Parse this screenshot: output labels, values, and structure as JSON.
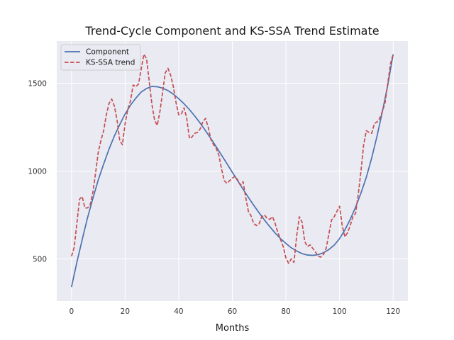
{
  "chart_data": {
    "type": "line",
    "title": "Trend-Cycle Component and KS-SSA Trend Estimate",
    "xlabel": "Months",
    "ylabel": "",
    "xlim": [
      -5.5,
      125.5
    ],
    "ylim": [
      260,
      1740
    ],
    "xticks": [
      0,
      20,
      40,
      60,
      80,
      100,
      120
    ],
    "yticks": [
      500,
      1000,
      1500
    ],
    "grid": true,
    "legend": "top-left",
    "series": [
      {
        "name": "Component",
        "color": "#4c72b0",
        "style": "solid",
        "x": [
          0,
          2,
          4,
          6,
          8,
          10,
          12,
          14,
          16,
          18,
          20,
          22,
          24,
          26,
          28,
          30,
          32,
          34,
          36,
          38,
          40,
          42,
          44,
          46,
          48,
          50,
          52,
          54,
          56,
          58,
          60,
          62,
          64,
          66,
          68,
          70,
          72,
          74,
          76,
          78,
          80,
          82,
          84,
          86,
          88,
          90,
          92,
          94,
          96,
          98,
          100,
          102,
          104,
          106,
          108,
          110,
          112,
          114,
          116,
          118,
          120
        ],
        "y": [
          340,
          480,
          610,
          735,
          845,
          950,
          1040,
          1125,
          1200,
          1265,
          1325,
          1375,
          1415,
          1450,
          1470,
          1482,
          1480,
          1472,
          1458,
          1438,
          1412,
          1383,
          1350,
          1313,
          1273,
          1230,
          1185,
          1138,
          1090,
          1042,
          993,
          945,
          897,
          850,
          805,
          762,
          721,
          683,
          647,
          615,
          588,
          563,
          545,
          530,
          522,
          520,
          524,
          535,
          553,
          578,
          615,
          665,
          725,
          795,
          875,
          965,
          1075,
          1200,
          1340,
          1490,
          1665
        ]
      },
      {
        "name": "KS-SSA trend",
        "color": "#c44e52",
        "style": "dashed",
        "x": [
          0,
          1,
          2,
          3,
          4,
          5,
          6,
          7,
          8,
          9,
          10,
          11,
          12,
          13,
          14,
          15,
          16,
          17,
          18,
          19,
          20,
          21,
          22,
          23,
          24,
          25,
          26,
          27,
          28,
          29,
          30,
          31,
          32,
          33,
          34,
          35,
          36,
          37,
          38,
          39,
          40,
          41,
          42,
          43,
          44,
          45,
          46,
          47,
          48,
          49,
          50,
          51,
          52,
          53,
          54,
          55,
          56,
          57,
          58,
          59,
          60,
          61,
          62,
          63,
          64,
          65,
          66,
          67,
          68,
          69,
          70,
          71,
          72,
          73,
          74,
          75,
          76,
          77,
          78,
          79,
          80,
          81,
          82,
          83,
          84,
          85,
          86,
          87,
          88,
          89,
          90,
          91,
          92,
          93,
          94,
          95,
          96,
          97,
          98,
          99,
          100,
          101,
          102,
          103,
          104,
          105,
          106,
          107,
          108,
          109,
          110,
          111,
          112,
          113,
          114,
          115,
          116,
          117,
          118,
          119,
          120
        ],
        "y": [
          515,
          565,
          700,
          840,
          855,
          790,
          790,
          810,
          880,
          990,
          1110,
          1175,
          1230,
          1320,
          1385,
          1410,
          1370,
          1290,
          1175,
          1150,
          1270,
          1350,
          1400,
          1490,
          1480,
          1495,
          1580,
          1665,
          1640,
          1510,
          1380,
          1290,
          1260,
          1340,
          1450,
          1560,
          1585,
          1545,
          1480,
          1390,
          1320,
          1325,
          1360,
          1300,
          1185,
          1195,
          1215,
          1220,
          1240,
          1280,
          1300,
          1250,
          1180,
          1150,
          1130,
          1090,
          1010,
          945,
          930,
          945,
          960,
          970,
          950,
          920,
          940,
          850,
          770,
          745,
          700,
          690,
          700,
          740,
          750,
          730,
          725,
          740,
          700,
          650,
          610,
          570,
          505,
          475,
          500,
          480,
          630,
          740,
          710,
          600,
          570,
          580,
          560,
          540,
          515,
          510,
          525,
          560,
          640,
          720,
          740,
          770,
          800,
          690,
          625,
          650,
          690,
          740,
          760,
          870,
          1000,
          1150,
          1230,
          1220,
          1215,
          1270,
          1280,
          1300,
          1340,
          1390,
          1500,
          1610,
          1665
        ]
      }
    ]
  }
}
